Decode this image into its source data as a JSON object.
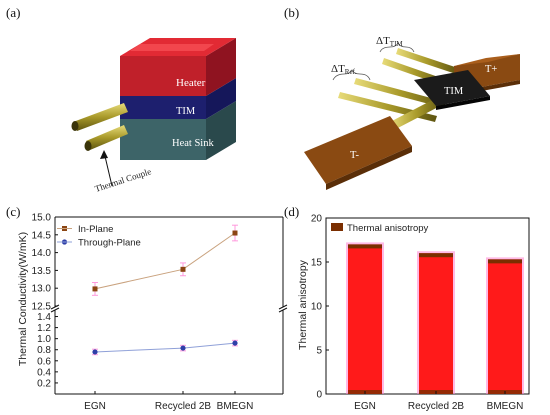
{
  "panels": {
    "a": {
      "label": "(a)",
      "layers": [
        "Heater",
        "TIM",
        "Heat Sink"
      ],
      "annotation": "Thermal Couple"
    },
    "b": {
      "label": "(b)",
      "delta_ref_main": "ΔT",
      "delta_ref_sub": "Ref.",
      "delta_tim_main": "ΔT",
      "delta_tim_sub": "TIM",
      "t_plus": "T+",
      "tim_block": "TIM",
      "t_minus": "T-"
    },
    "c": {
      "label": "(c)"
    },
    "d": {
      "label": "(d)"
    }
  },
  "colors": {
    "inplane": "#8B4513",
    "inplane_line": "#c9a27e",
    "throughplane": "#2f3fa8",
    "throughplane_line": "#8fa0d8",
    "bar_fill": "#ff1a1a",
    "bar_edge": "#7a2e00",
    "bar_glow": "#ff7fd0",
    "errbar_c": "#ff99dd"
  },
  "chart_data": [
    {
      "type": "line",
      "panel": "c",
      "xlabel": "",
      "ylabel": "Thermal Conductivity(W/mK)",
      "categories": [
        "EGN",
        "Recycled 2B",
        "BMEGN"
      ],
      "broken_axis": true,
      "upper_ylim": [
        12.5,
        15.0
      ],
      "upper_ticks": [
        "12.5",
        "13.0",
        "13.5",
        "14.0",
        "14.5",
        "15.0"
      ],
      "lower_ylim": [
        0.0,
        1.5
      ],
      "lower_ticks": [
        "0.2",
        "0.4",
        "0.6",
        "0.8",
        "1.0",
        "1.2",
        "1.4"
      ],
      "legend_position": "top-left",
      "series": [
        {
          "name": "In-Plane",
          "values": [
            12.98,
            13.53,
            14.55
          ],
          "errors": [
            0.18,
            0.18,
            0.22
          ]
        },
        {
          "name": "Through-Plane",
          "values": [
            0.76,
            0.83,
            0.92
          ],
          "errors": [
            0.05,
            0.05,
            0.05
          ]
        }
      ]
    },
    {
      "type": "bar",
      "panel": "d",
      "xlabel": "",
      "ylabel": "Thermal anisotropy",
      "categories": [
        "EGN",
        "Recycled 2B",
        "BMEGN"
      ],
      "ylim": [
        0,
        20
      ],
      "yticks": [
        "0",
        "5",
        "10",
        "15",
        "20"
      ],
      "legend_position": "top-left",
      "series": [
        {
          "name": "Thermal anisotropy",
          "values": [
            17.0,
            16.0,
            15.3
          ]
        }
      ]
    }
  ]
}
